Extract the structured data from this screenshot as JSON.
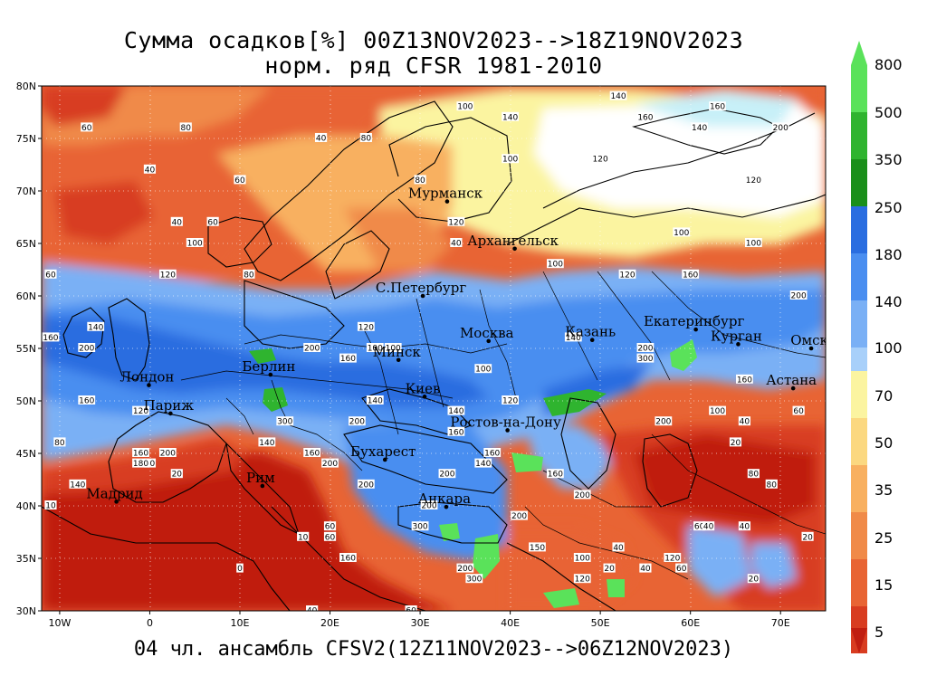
{
  "title": {
    "line1": "Сумма осадков[%] 00Z13NOV2023-->18Z19NOV2023",
    "line2": "норм. ряд CFSR 1981-2010"
  },
  "footer": "04 чл. ансамбль CFSV2(12Z11NOV2023-->06Z12NOV2023)",
  "axes": {
    "lat_labels": [
      "80N",
      "75N",
      "70N",
      "65N",
      "60N",
      "55N",
      "50N",
      "45N",
      "40N",
      "35N",
      "30N"
    ],
    "lon_labels": [
      "10W",
      "0",
      "10E",
      "20E",
      "30E",
      "40E",
      "50E",
      "60E",
      "70E"
    ],
    "lon_range": [
      -12,
      75
    ],
    "lat_range": [
      30,
      80
    ]
  },
  "colorbar": {
    "labels": [
      "800",
      "500",
      "350",
      "250",
      "180",
      "140",
      "100",
      "70",
      "50",
      "35",
      "25",
      "15",
      "5"
    ],
    "colors_top": [
      "#5ae25a",
      "#2fb42f",
      "#1a8f1a",
      "#2a6de0",
      "#4a8ef0",
      "#7ab0f5",
      "#a8d0fa",
      "#c8f0f8"
    ],
    "colors_bottom": [
      "#fbf4a0",
      "#fbd880",
      "#f8b060",
      "#f08a48",
      "#e86434",
      "#d83c20",
      "#c01e10"
    ]
  },
  "cities": [
    {
      "name": "Мурманск",
      "lon": 33,
      "lat": 69
    },
    {
      "name": "Архангельск",
      "lon": 40.5,
      "lat": 64.5
    },
    {
      "name": "С.Петербург",
      "lon": 30.3,
      "lat": 60
    },
    {
      "name": "Москва",
      "lon": 37.6,
      "lat": 55.7
    },
    {
      "name": "Казань",
      "lon": 49.1,
      "lat": 55.8
    },
    {
      "name": "Екатеринбург",
      "lon": 60.6,
      "lat": 56.8
    },
    {
      "name": "Курган",
      "lon": 65.3,
      "lat": 55.4
    },
    {
      "name": "Омск",
      "lon": 73.4,
      "lat": 55
    },
    {
      "name": "Астана",
      "lon": 71.4,
      "lat": 51.2
    },
    {
      "name": "Минск",
      "lon": 27.6,
      "lat": 53.9
    },
    {
      "name": "Киев",
      "lon": 30.5,
      "lat": 50.4
    },
    {
      "name": "Берлин",
      "lon": 13.4,
      "lat": 52.5
    },
    {
      "name": "Лондон",
      "lon": -0.1,
      "lat": 51.5
    },
    {
      "name": "Париж",
      "lon": 2.3,
      "lat": 48.8
    },
    {
      "name": "Ростов-на-Дону",
      "lon": 39.7,
      "lat": 47.2
    },
    {
      "name": "Бухарест",
      "lon": 26.1,
      "lat": 44.4
    },
    {
      "name": "Рим",
      "lon": 12.5,
      "lat": 41.9
    },
    {
      "name": "Мадрид",
      "lon": -3.7,
      "lat": 40.4
    },
    {
      "name": "Анкара",
      "lon": 32.9,
      "lat": 39.9
    }
  ],
  "contour_labels": [
    {
      "t": "60",
      "lon": -7,
      "lat": 76
    },
    {
      "t": "40",
      "lon": 0,
      "lat": 72
    },
    {
      "t": "80",
      "lon": 4,
      "lat": 76
    },
    {
      "t": "60",
      "lon": 10,
      "lat": 71
    },
    {
      "t": "40",
      "lon": 19,
      "lat": 75
    },
    {
      "t": "80",
      "lon": 24,
      "lat": 75
    },
    {
      "t": "100",
      "lon": 35,
      "lat": 78
    },
    {
      "t": "140",
      "lon": 40,
      "lat": 77
    },
    {
      "t": "140",
      "lon": 52,
      "lat": 79
    },
    {
      "t": "160",
      "lon": 55,
      "lat": 77
    },
    {
      "t": "160",
      "lon": 63,
      "lat": 78
    },
    {
      "t": "200",
      "lon": 70,
      "lat": 76
    },
    {
      "t": "140",
      "lon": 61,
      "lat": 76
    },
    {
      "t": "120",
      "lon": 50,
      "lat": 73
    },
    {
      "t": "100",
      "lon": 40,
      "lat": 73
    },
    {
      "t": "120",
      "lon": 67,
      "lat": 71
    },
    {
      "t": "100",
      "lon": 59,
      "lat": 66
    },
    {
      "t": "100",
      "lon": 67,
      "lat": 65
    },
    {
      "t": "100",
      "lon": 45,
      "lat": 63
    },
    {
      "t": "120",
      "lon": 53,
      "lat": 62
    },
    {
      "t": "160",
      "lon": 60,
      "lat": 62
    },
    {
      "t": "200",
      "lon": 72,
      "lat": 60
    },
    {
      "t": "40",
      "lon": 34,
      "lat": 65
    },
    {
      "t": "100",
      "lon": 5,
      "lat": 65
    },
    {
      "t": "40",
      "lon": 3,
      "lat": 67
    },
    {
      "t": "60",
      "lon": 7,
      "lat": 67
    },
    {
      "t": "60",
      "lon": -11,
      "lat": 62
    },
    {
      "t": "120",
      "lon": 2,
      "lat": 62
    },
    {
      "t": "80",
      "lon": 11,
      "lat": 62
    },
    {
      "t": "160",
      "lon": -11,
      "lat": 56
    },
    {
      "t": "140",
      "lon": -6,
      "lat": 57
    },
    {
      "t": "200",
      "lon": -7,
      "lat": 55
    },
    {
      "t": "140",
      "lon": 47,
      "lat": 56
    },
    {
      "t": "200",
      "lon": 55,
      "lat": 55
    },
    {
      "t": "300",
      "lon": 55,
      "lat": 54
    },
    {
      "t": "160",
      "lon": 66,
      "lat": 52
    },
    {
      "t": "100",
      "lon": 63,
      "lat": 49
    },
    {
      "t": "40",
      "lon": 66,
      "lat": 48
    },
    {
      "t": "20",
      "lon": 65,
      "lat": 46
    },
    {
      "t": "60",
      "lon": 72,
      "lat": 49
    },
    {
      "t": "80",
      "lon": 67,
      "lat": 43
    },
    {
      "t": "80",
      "lon": 69,
      "lat": 42
    },
    {
      "t": "120",
      "lon": 40,
      "lat": 50
    },
    {
      "t": "200",
      "lon": 57,
      "lat": 48
    },
    {
      "t": "140",
      "lon": 34,
      "lat": 49
    },
    {
      "t": "160",
      "lon": 34,
      "lat": 47
    },
    {
      "t": "200",
      "lon": 23,
      "lat": 48
    },
    {
      "t": "140",
      "lon": 25,
      "lat": 50
    },
    {
      "t": "300",
      "lon": 15,
      "lat": 48
    },
    {
      "t": "140",
      "lon": 13,
      "lat": 46
    },
    {
      "t": "160",
      "lon": 18,
      "lat": 45
    },
    {
      "t": "200",
      "lon": 20,
      "lat": 44
    },
    {
      "t": "200",
      "lon": 24,
      "lat": 42
    },
    {
      "t": "200",
      "lon": 33,
      "lat": 43
    },
    {
      "t": "160",
      "lon": 38,
      "lat": 45
    },
    {
      "t": "140",
      "lon": 37,
      "lat": 44
    },
    {
      "t": "160",
      "lon": 45,
      "lat": 43
    },
    {
      "t": "200",
      "lon": 48,
      "lat": 41
    },
    {
      "t": "200",
      "lon": 31,
      "lat": 40
    },
    {
      "t": "300",
      "lon": 30,
      "lat": 38
    },
    {
      "t": "200",
      "lon": 41,
      "lat": 39
    },
    {
      "t": "150",
      "lon": 43,
      "lat": 36
    },
    {
      "t": "120",
      "lon": 48,
      "lat": 33
    },
    {
      "t": "200",
      "lon": 35,
      "lat": 34
    },
    {
      "t": "300",
      "lon": 36,
      "lat": 33
    },
    {
      "t": "100",
      "lon": 48,
      "lat": 35
    },
    {
      "t": "40",
      "lon": 52,
      "lat": 36
    },
    {
      "t": "60",
      "lon": 59,
      "lat": 34
    },
    {
      "t": "120",
      "lon": 58,
      "lat": 35
    },
    {
      "t": "40",
      "lon": 55,
      "lat": 34
    },
    {
      "t": "20",
      "lon": 51,
      "lat": 34
    },
    {
      "t": "60",
      "lon": 61,
      "lat": 38
    },
    {
      "t": "40",
      "lon": 62,
      "lat": 38
    },
    {
      "t": "40",
      "lon": 66,
      "lat": 38
    },
    {
      "t": "20",
      "lon": 67,
      "lat": 33
    },
    {
      "t": "20",
      "lon": 73,
      "lat": 37
    },
    {
      "t": "40",
      "lon": 18,
      "lat": 30
    },
    {
      "t": "60",
      "lon": 29,
      "lat": 30
    },
    {
      "t": "10",
      "lon": 17,
      "lat": 37
    },
    {
      "t": "0",
      "lon": 10,
      "lat": 34
    },
    {
      "t": "60",
      "lon": 20,
      "lat": 37
    },
    {
      "t": "80",
      "lon": 0,
      "lat": 44
    },
    {
      "t": "20",
      "lon": 3,
      "lat": 43
    },
    {
      "t": "80",
      "lon": -10,
      "lat": 46
    },
    {
      "t": "140",
      "lon": -8,
      "lat": 42
    },
    {
      "t": "160",
      "lon": -7,
      "lat": 50
    },
    {
      "t": "120",
      "lon": -1,
      "lat": 49
    },
    {
      "t": "200",
      "lon": 2,
      "lat": 45
    },
    {
      "t": "160",
      "lon": -1,
      "lat": 45
    },
    {
      "t": "180",
      "lon": -1,
      "lat": 44
    },
    {
      "t": "10",
      "lon": -11,
      "lat": 40
    },
    {
      "t": "60",
      "lon": 20,
      "lat": 38
    },
    {
      "t": "160",
      "lon": 22,
      "lat": 35
    },
    {
      "t": "100",
      "lon": 37,
      "lat": 53
    },
    {
      "t": "100",
      "lon": 25,
      "lat": 55
    },
    {
      "t": "160",
      "lon": 22,
      "lat": 54
    },
    {
      "t": "100",
      "lon": 27,
      "lat": 55
    },
    {
      "t": "120",
      "lon": 24,
      "lat": 57
    },
    {
      "t": "200",
      "lon": 18,
      "lat": 55
    },
    {
      "t": "80",
      "lon": 30,
      "lat": 71
    },
    {
      "t": "120",
      "lon": 34,
      "lat": 67
    }
  ]
}
